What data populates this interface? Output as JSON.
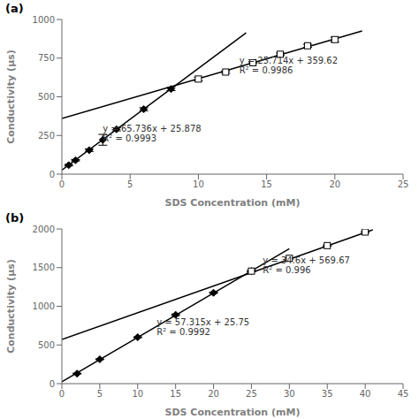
{
  "chart_data": [
    {
      "type": "scatter",
      "title": "(a)",
      "x_label": "SDS Concentration (mM)",
      "y_label": "Conductivity (μs)",
      "xlim": [
        0,
        25
      ],
      "ylim": [
        0,
        1000
      ],
      "xticks": [
        0,
        5,
        10,
        15,
        20,
        25
      ],
      "yticks": [
        0,
        250,
        500,
        750,
        1000
      ],
      "grid": false,
      "series": [
        {
          "type": "scatter",
          "marker": "diamond",
          "color": "black",
          "x": [
            0.5,
            1,
            2,
            3,
            4,
            6,
            8
          ],
          "values": [
            58,
            90,
            155,
            222,
            290,
            420,
            550
          ],
          "errors": [
            5,
            5,
            8,
            35,
            10,
            10,
            10
          ]
        },
        {
          "type": "scatter",
          "marker": "open_square",
          "color": "black",
          "x": [
            10,
            12,
            14,
            16,
            18,
            20
          ],
          "values": [
            615,
            660,
            720,
            775,
            830,
            870
          ],
          "errors": [
            12,
            8,
            5,
            8,
            10,
            15
          ]
        },
        {
          "type": "line",
          "color": "black",
          "x": [
            0,
            13.5
          ],
          "values": [
            25.878,
            913.314
          ]
        },
        {
          "type": "line",
          "color": "black",
          "x": [
            0,
            22
          ],
          "values": [
            359.62,
            925.328
          ]
        }
      ],
      "annotations": [
        {
          "text": "y = 65.736x + 25.878\nR² = 0.9993",
          "x": 3.0,
          "y": 195
        },
        {
          "text": "y = 25.714x + 359.62\nR² = 0.9986",
          "x": 13.0,
          "y": 635
        }
      ]
    },
    {
      "type": "scatter",
      "title": "(b)",
      "x_label": "SDS Concentration (mM)",
      "y_label": "Conductivity (μs)",
      "xlim": [
        0,
        45
      ],
      "ylim": [
        0,
        2000
      ],
      "xticks": [
        0,
        5,
        10,
        15,
        20,
        25,
        30,
        35,
        40,
        45
      ],
      "yticks": [
        0,
        500,
        1000,
        1500,
        2000
      ],
      "grid": false,
      "series": [
        {
          "type": "scatter",
          "marker": "diamond",
          "color": "black",
          "x": [
            2,
            5,
            10,
            15,
            20,
            25
          ],
          "values": [
            130,
            315,
            600,
            890,
            1175,
            1455
          ],
          "errors": [
            5,
            5,
            5,
            10,
            8,
            8
          ]
        },
        {
          "type": "scatter",
          "marker": "open_square",
          "color": "black",
          "x": [
            25,
            30,
            35,
            40
          ],
          "values": [
            1455,
            1620,
            1785,
            1960
          ],
          "errors": [
            8,
            8,
            8,
            8
          ]
        },
        {
          "type": "line",
          "color": "black",
          "x": [
            0,
            30
          ],
          "values": [
            25.75,
            1745.2
          ]
        },
        {
          "type": "line",
          "color": "black",
          "x": [
            0,
            41
          ],
          "values": [
            569.67,
            1988.27
          ]
        }
      ],
      "annotations": [
        {
          "text": "y = 57.315x + 25.75\nR² = 0.9992",
          "x": 12.5,
          "y": 590
        },
        {
          "text": "y = 34.6x + 569.67\nR² = 0.996",
          "x": 26.5,
          "y": 1390
        }
      ]
    }
  ]
}
